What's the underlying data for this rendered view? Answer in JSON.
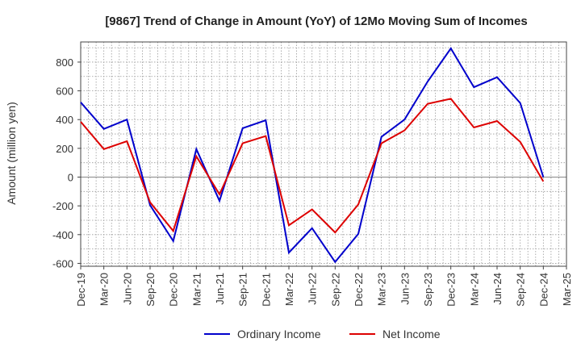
{
  "chart_data": {
    "type": "line",
    "title": "[9867]  Trend of Change in Amount (YoY) of 12Mo Moving Sum of Incomes",
    "ylabel": "Amount (million yen)",
    "xlabel": "",
    "ylim": [
      -620,
      940
    ],
    "yticks": [
      800,
      600,
      400,
      200,
      0,
      -200,
      -400,
      -600
    ],
    "grid": true,
    "legend_position": "bottom",
    "x": [
      "Dec-19",
      "Mar-20",
      "Jun-20",
      "Sep-20",
      "Dec-20",
      "Mar-21",
      "Jun-21",
      "Sep-21",
      "Dec-21",
      "Mar-22",
      "Jun-22",
      "Sep-22",
      "Dec-22",
      "Mar-23",
      "Jun-23",
      "Sep-23",
      "Dec-23",
      "Mar-24",
      "Jun-24",
      "Sep-24",
      "Dec-24",
      "Mar-25"
    ],
    "series": [
      {
        "name": "Ordinary Income",
        "color": "#0000cc",
        "values": [
          520,
          335,
          400,
          -195,
          -445,
          195,
          -165,
          340,
          395,
          -525,
          -355,
          -590,
          -395,
          280,
          400,
          665,
          895,
          625,
          695,
          515,
          0,
          null
        ]
      },
      {
        "name": "Net Income",
        "color": "#dd0000",
        "values": [
          385,
          195,
          250,
          -175,
          -375,
          145,
          -120,
          235,
          285,
          -335,
          -225,
          -385,
          -190,
          235,
          325,
          510,
          545,
          345,
          390,
          245,
          -30,
          null
        ]
      }
    ]
  }
}
